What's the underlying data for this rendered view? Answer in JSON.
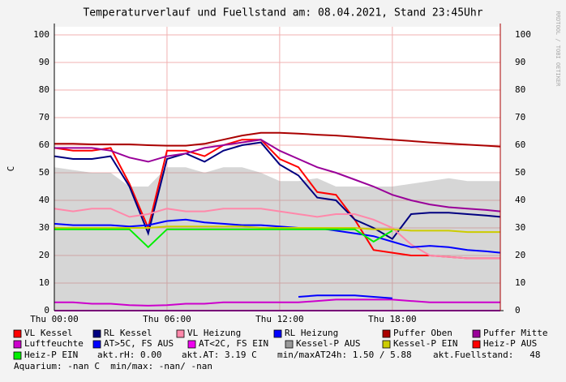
{
  "chart_data": {
    "type": "line",
    "title": "Temperaturverlauf und Fuellstand am: 08.04.2021, Stand 23:45Uhr",
    "y_label": "C",
    "side_text": "RRDTOOL / TOBI OETIKER",
    "x": [
      0,
      1,
      2,
      3,
      4,
      5,
      6,
      7,
      8,
      9,
      10,
      11,
      12,
      13,
      14,
      15,
      16,
      17,
      18,
      19,
      20,
      21,
      22,
      23,
      23.75
    ],
    "xlim": [
      0,
      23.75
    ],
    "xticks": [
      {
        "value": 0,
        "label": "Thu 00:00"
      },
      {
        "value": 6,
        "label": "Thu 06:00"
      },
      {
        "value": 12,
        "label": "Thu 12:00"
      },
      {
        "value": 18,
        "label": "Thu 18:00"
      }
    ],
    "ylim": [
      0,
      100
    ],
    "yticks": [
      0,
      10,
      20,
      30,
      40,
      50,
      60,
      70,
      80,
      90,
      100
    ],
    "grid": true,
    "series": [
      {
        "name": "Kessel-P AUS",
        "color": "#999999",
        "type": "area",
        "values": [
          52,
          51,
          50,
          50,
          45,
          45,
          52,
          52,
          50,
          52,
          52,
          50,
          47,
          47,
          48,
          45,
          45,
          45,
          45,
          46,
          47,
          48,
          47,
          47,
          47
        ]
      },
      {
        "name": "VL Kessel",
        "color": "#ff0000",
        "values": [
          59,
          58,
          58,
          59,
          46,
          30,
          58,
          58,
          56,
          60,
          62,
          62,
          55,
          52,
          43,
          42,
          33,
          22,
          21,
          20,
          20,
          19.5,
          19,
          19,
          19
        ]
      },
      {
        "name": "RL Kessel",
        "color": "#000080",
        "values": [
          56,
          55,
          55,
          56,
          45,
          28,
          55,
          57,
          54,
          58,
          60,
          61,
          53,
          49,
          41,
          40,
          33,
          30,
          26,
          35,
          35.5,
          35.5,
          35,
          34.5,
          34
        ]
      },
      {
        "name": "VL Heizung",
        "color": "#ff88aa",
        "values": [
          37,
          36,
          37,
          37,
          34,
          35,
          37,
          36,
          36,
          37,
          37,
          37,
          36,
          35,
          34,
          35,
          35,
          33,
          30,
          24,
          20,
          19.5,
          19,
          19,
          19
        ]
      },
      {
        "name": "RL Heizung",
        "color": "#0000ff",
        "values": [
          31.5,
          31,
          31,
          31,
          30.5,
          31,
          32.5,
          33,
          32,
          31.5,
          31,
          31,
          30.5,
          30,
          30,
          29,
          28,
          27,
          25,
          23,
          23.5,
          23,
          22,
          21.5,
          21
        ]
      },
      {
        "name": "Puffer Oben",
        "color": "#aa0000",
        "values": [
          60.5,
          60.5,
          60.3,
          60.3,
          60.3,
          60,
          59.8,
          59.8,
          60.5,
          62,
          63.5,
          64.5,
          64.5,
          64.2,
          63.8,
          63.5,
          63,
          62.5,
          62,
          61.5,
          61,
          60.6,
          60.2,
          59.8,
          59.5
        ]
      },
      {
        "name": "Puffer Mitte",
        "color": "#990099",
        "values": [
          59,
          59,
          59,
          58,
          55.5,
          54,
          56,
          57,
          59,
          60,
          61,
          62,
          58,
          55,
          52,
          50,
          47.5,
          45,
          42,
          40,
          38.5,
          37.5,
          37,
          36.5,
          36
        ]
      },
      {
        "name": "Luftfeuchte",
        "color": "#cc00cc",
        "values": [
          3,
          3,
          2.5,
          2.5,
          2,
          1.8,
          2,
          2.5,
          2.5,
          3,
          3,
          3,
          3,
          3,
          3.5,
          4,
          4,
          4,
          4,
          3.5,
          3,
          3,
          3,
          3,
          3
        ]
      },
      {
        "name": "AT>5C, FS AUS",
        "color": "#0000ff",
        "values": [
          null,
          null,
          null,
          null,
          null,
          null,
          null,
          null,
          null,
          null,
          null,
          null,
          null,
          5,
          5.5,
          5.5,
          5.5,
          5,
          4.5,
          null,
          null,
          null,
          null,
          null,
          null
        ]
      },
      {
        "name": "AT<2C, FS EIN",
        "color": "#ee00ee",
        "values": [
          0,
          0,
          0,
          0,
          0,
          0,
          0,
          0,
          0,
          0,
          0,
          0,
          0,
          0,
          0,
          0,
          0,
          0,
          0,
          0,
          0,
          0,
          0,
          0,
          0
        ]
      },
      {
        "name": "Kessel-P EIN",
        "color": "#cccc00",
        "values": [
          30,
          30,
          30,
          30,
          30,
          30,
          30.5,
          30.5,
          30.5,
          30.5,
          30.5,
          30,
          30,
          30,
          30,
          30,
          30,
          29.5,
          29.5,
          29,
          29,
          29,
          28.5,
          28.5,
          28.5
        ]
      },
      {
        "name": "Heiz-P AUS",
        "color": "#ff0000",
        "values": [
          null,
          null,
          null,
          null,
          null,
          null,
          null,
          null,
          null,
          null,
          null,
          null,
          null,
          null,
          null,
          null,
          null,
          null,
          null,
          null,
          null,
          null,
          null,
          null,
          null
        ]
      },
      {
        "name": "Heiz-P EIN",
        "color": "#00ee00",
        "values": [
          29.5,
          29.5,
          29.5,
          29.5,
          29.5,
          23,
          29.5,
          29.5,
          29.5,
          29.5,
          29.5,
          29.5,
          29.5,
          29.5,
          29.5,
          29.5,
          29.5,
          25,
          29,
          null,
          null,
          null,
          null,
          null,
          null
        ]
      }
    ],
    "annotations": [
      "akt.rH: 0.00",
      "akt.AT: 3.19 C",
      "min/maxAT24h: 1.50 / 5.88",
      "akt.Fuellstand:   48",
      "Aquarium: -nan C  min/max: -nan/ -nan"
    ]
  }
}
